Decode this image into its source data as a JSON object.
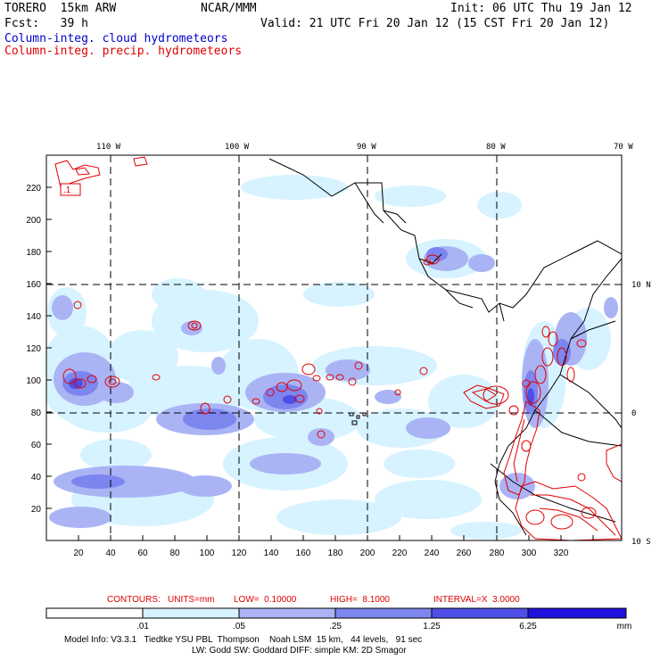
{
  "header": {
    "model": "TORERO  15km ARW",
    "center": "NCAR/MMM",
    "init": "Init: 06 UTC Thu 19 Jan 12",
    "fcst": "Fcst:   39 h",
    "valid": "Valid: 21 UTC Fri 20 Jan 12 (15 CST Fri 20 Jan 12)",
    "field_cloud": "Column-integ. cloud hydrometeors",
    "field_precip": "Column-integ. precip. hydrometeors"
  },
  "colors": {
    "cloud_label": "#0000cc",
    "precip_label": "#e00000",
    "contour": "#e00000",
    "shade_1": "#d6f3ff",
    "shade_2": "#aab4f5",
    "shade_3": "#7d85ee",
    "shade_4": "#4e4fe6",
    "shade_5": "#1f12dc"
  },
  "map": {
    "lon_labels": [
      "110 W",
      "100 W",
      "90 W",
      "80 W",
      "70 W"
    ],
    "lat_labels": [
      "10 N",
      "0",
      "10 S"
    ],
    "x_ticks": [
      "20",
      "40",
      "60",
      "80",
      "100",
      "120",
      "140",
      "160",
      "180",
      "200",
      "220",
      "240",
      "260",
      "280",
      "300",
      "320"
    ],
    "y_ticks": [
      "20",
      "40",
      "60",
      "80",
      "100",
      "120",
      "140",
      "160",
      "180",
      "200",
      "220"
    ],
    "contour_label": ".1"
  },
  "contours": {
    "prefix": "CONTOURS:",
    "units": "UNITS=mm",
    "low": "LOW=  0.10000",
    "high": "HIGH=  8.1000",
    "interval": "INTERVAL=X  3.0000"
  },
  "colorbar": {
    "labels": [
      ".01",
      ".05",
      ".25",
      "1.25",
      "6.25"
    ],
    "unit": "mm"
  },
  "footer": {
    "line1": "Model Info: V3.3.1   Tiedtke YSU PBL  Thompson    Noah LSM  15 km,   44 levels,   91 sec",
    "line2": "LW: Godd SW: Goddard DIFF: simple KM: 2D Smagor"
  }
}
